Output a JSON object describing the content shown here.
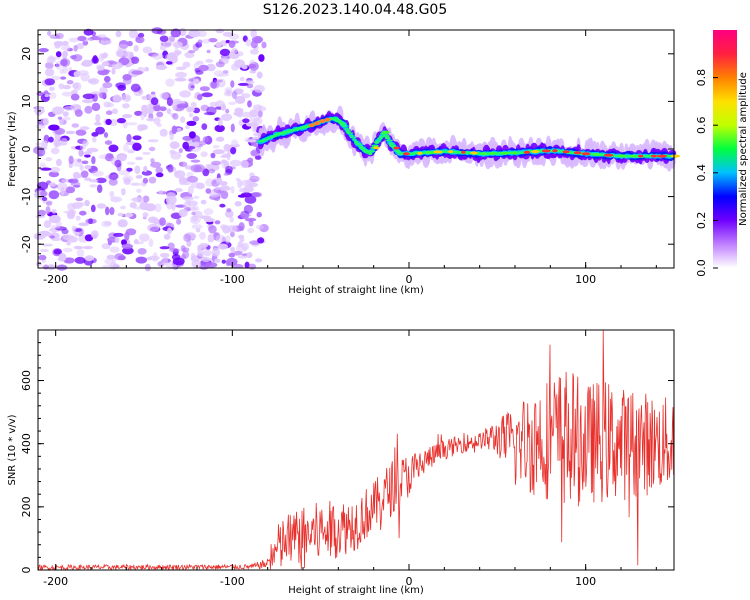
{
  "title": "S126.2023.140.04.48.G05",
  "chart_data": [
    {
      "type": "heatmap",
      "xlabel": "Height of straight line (km)",
      "ylabel": "Frequency (Hz)",
      "xlim": [
        -210,
        150
      ],
      "ylim": [
        -25,
        25
      ],
      "x_ticks": [
        "-200",
        "-100",
        "0",
        "100"
      ],
      "y_ticks": [
        "-20",
        "-10",
        "0",
        "10",
        "20"
      ],
      "grid": false,
      "noise_region_x": [
        -210,
        -82
      ],
      "signal_track": {
        "x": [
          -84,
          -75,
          -65,
          -55,
          -48,
          -42,
          -38,
          -34,
          -30,
          -26,
          -22,
          -18,
          -14,
          -10,
          -5,
          0,
          20,
          40,
          60,
          80,
          100,
          120,
          140,
          150
        ],
        "y": [
          1.5,
          3,
          4,
          5,
          6,
          6.5,
          5.5,
          3.5,
          1.5,
          0,
          -1,
          1.5,
          3.5,
          1,
          -1,
          -1,
          -0.5,
          -1,
          -0.8,
          -0.3,
          -1,
          -1.5,
          -1.5,
          -1.5
        ]
      },
      "colorbar": {
        "label": "Normalized spectral amplitude",
        "range": [
          0,
          1
        ],
        "ticks": [
          "0.0",
          "0.2",
          "0.4",
          "0.6",
          "0.8"
        ],
        "colors": [
          "#ffffff",
          "#c080ff",
          "#7000ff",
          "#0000ff",
          "#00c0ff",
          "#00ff40",
          "#c0ff00",
          "#ffe000",
          "#ff8000",
          "#ff2040",
          "#ff0080"
        ]
      }
    },
    {
      "type": "line",
      "xlabel": "Height of straight line (km)",
      "ylabel": "SNR (10 * v/v)",
      "xlim": [
        -210,
        150
      ],
      "ylim": [
        0,
        760
      ],
      "x_ticks": [
        "-200",
        "-100",
        "0",
        "100"
      ],
      "y_ticks": [
        "0",
        "200",
        "400",
        "600"
      ],
      "color": "#e8302c",
      "grid": false,
      "envelope": {
        "x": [
          -210,
          -90,
          -80,
          -75,
          -70,
          -60,
          -50,
          -40,
          -30,
          -20,
          -10,
          0,
          10,
          20,
          30,
          40,
          50,
          60,
          70,
          80,
          90,
          100,
          110,
          120,
          130,
          140,
          150
        ],
        "mean": [
          8,
          10,
          20,
          60,
          90,
          110,
          120,
          130,
          150,
          200,
          260,
          300,
          350,
          380,
          400,
          410,
          420,
          400,
          410,
          420,
          420,
          400,
          410,
          400,
          400,
          400,
          400
        ],
        "spread": [
          8,
          8,
          15,
          80,
          90,
          90,
          100,
          90,
          90,
          80,
          90,
          70,
          40,
          30,
          30,
          25,
          60,
          120,
          180,
          200,
          230,
          190,
          200,
          180,
          180,
          150,
          150
        ]
      }
    }
  ]
}
